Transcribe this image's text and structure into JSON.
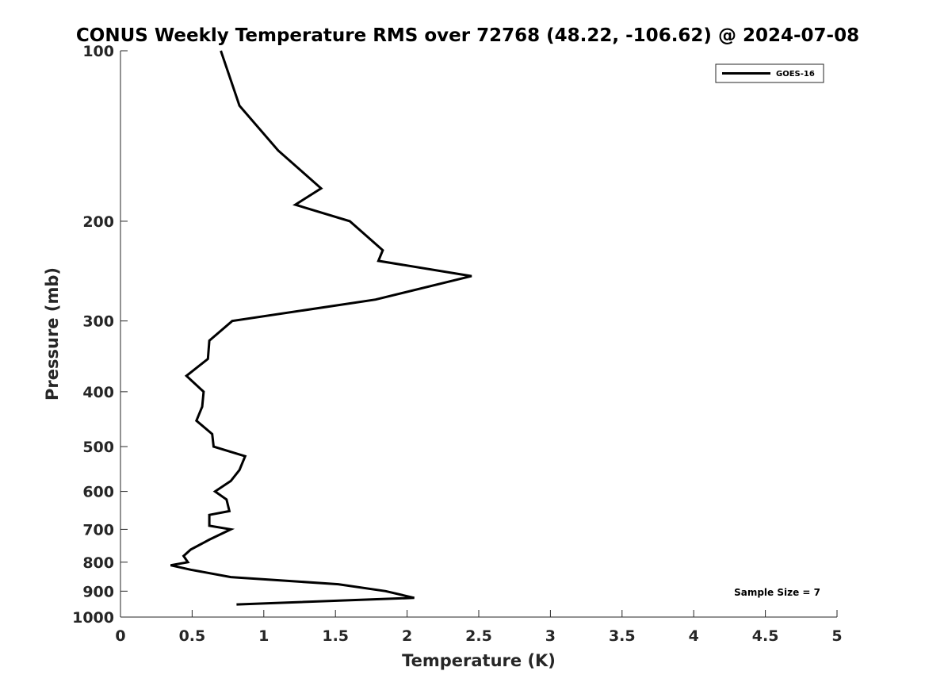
{
  "chart_data": {
    "type": "line",
    "title": "CONUS Weekly Temperature RMS over 72768 (48.22, -106.62) @ 2024-07-08",
    "xlabel": "Temperature (K)",
    "ylabel": "Pressure (mb)",
    "xlim": [
      0,
      5
    ],
    "ylim": [
      100,
      1000
    ],
    "yscale": "log",
    "y_reversed": true,
    "xticks": [
      "0",
      "0.5",
      "1",
      "1.5",
      "2",
      "2.5",
      "3",
      "3.5",
      "4",
      "4.5",
      "5"
    ],
    "yticks": [
      "100",
      "200",
      "300",
      "400",
      "500",
      "600",
      "700",
      "800",
      "900",
      "1000"
    ],
    "grid": false,
    "legend_position": "top-right",
    "annotation": "Sample Size = 7",
    "colors": {
      "series": "#000000",
      "axes": "#262626"
    },
    "series": [
      {
        "name": "GOES-16",
        "points": [
          [
            0.7,
            100
          ],
          [
            0.83,
            125
          ],
          [
            1.1,
            150
          ],
          [
            1.4,
            175
          ],
          [
            1.22,
            187
          ],
          [
            1.6,
            200
          ],
          [
            1.83,
            225
          ],
          [
            1.8,
            235
          ],
          [
            2.45,
            250
          ],
          [
            1.78,
            275
          ],
          [
            0.78,
            300
          ],
          [
            0.62,
            325
          ],
          [
            0.61,
            350
          ],
          [
            0.46,
            375
          ],
          [
            0.58,
            400
          ],
          [
            0.57,
            425
          ],
          [
            0.53,
            450
          ],
          [
            0.64,
            475
          ],
          [
            0.65,
            500
          ],
          [
            0.87,
            520
          ],
          [
            0.83,
            550
          ],
          [
            0.77,
            575
          ],
          [
            0.66,
            600
          ],
          [
            0.74,
            620
          ],
          [
            0.76,
            650
          ],
          [
            0.62,
            660
          ],
          [
            0.62,
            690
          ],
          [
            0.77,
            700
          ],
          [
            0.62,
            730
          ],
          [
            0.49,
            760
          ],
          [
            0.44,
            780
          ],
          [
            0.47,
            800
          ],
          [
            0.35,
            810
          ],
          [
            0.49,
            825
          ],
          [
            0.77,
            850
          ],
          [
            1.52,
            875
          ],
          [
            1.85,
            900
          ],
          [
            2.05,
            925
          ],
          [
            0.81,
            950
          ]
        ]
      }
    ]
  }
}
